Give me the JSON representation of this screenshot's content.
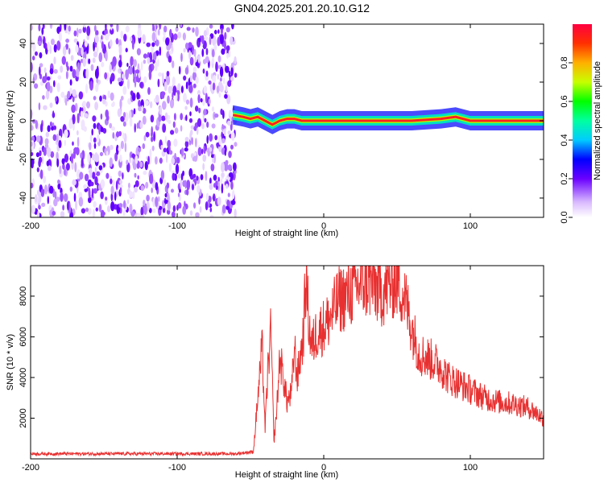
{
  "title": "GN04.2025.201.20.10.G12",
  "colors": {
    "series": "#e83030",
    "axis": "#000000"
  },
  "chart_data": [
    {
      "type": "heatmap",
      "xlabel": "Height of straight line (km)",
      "ylabel": "Frequency (Hz)",
      "xlim": [
        -200,
        150
      ],
      "ylim": [
        -50,
        50
      ],
      "xticks": [
        -200,
        -100,
        0,
        100
      ],
      "yticks": [
        -40,
        -20,
        0,
        20,
        40
      ],
      "noise_region_x": [
        -200,
        -60
      ],
      "ridge": {
        "x": [
          -62,
          -55,
          -50,
          -45,
          -40,
          -35,
          -30,
          -25,
          -20,
          -15,
          -10,
          0,
          20,
          40,
          60,
          80,
          90,
          100,
          120,
          150
        ],
        "y": [
          3,
          2,
          1,
          2,
          0,
          -2,
          0,
          1,
          1,
          0,
          0,
          0,
          0,
          0,
          0,
          1,
          2,
          0,
          0,
          0
        ]
      },
      "colorbar": {
        "label": "Normalized spectral amplitude",
        "ticks": [
          "0.0",
          "0.2",
          "0.4",
          "0.6",
          "0.8"
        ],
        "range": [
          0,
          1
        ]
      }
    },
    {
      "type": "line",
      "xlabel": "Height of straight line (km)",
      "ylabel": "SNR (10 * v/v)",
      "xlim": [
        -200,
        150
      ],
      "ylim": [
        0,
        9500
      ],
      "xticks": [
        -200,
        -100,
        0,
        100
      ],
      "yticks": [
        2000,
        4000,
        6000,
        8000
      ],
      "series": [
        {
          "x": [
            -200,
            -150,
            -100,
            -60,
            -48,
            -45,
            -42,
            -40,
            -38,
            -36,
            -34,
            -32,
            -30,
            -28,
            -25,
            -22,
            -20,
            -18,
            -16,
            -14,
            -12,
            -10,
            -8,
            -5,
            0,
            5,
            10,
            15,
            20,
            25,
            30,
            35,
            40,
            45,
            50,
            55,
            60,
            65,
            70,
            75,
            80,
            85,
            90,
            95,
            100,
            110,
            120,
            130,
            140,
            150
          ],
          "y": [
            250,
            250,
            250,
            250,
            350,
            3000,
            5500,
            1500,
            4500,
            6300,
            800,
            2500,
            5000,
            4200,
            2800,
            3200,
            5500,
            4000,
            5000,
            6000,
            9000,
            6500,
            5500,
            6200,
            6500,
            7000,
            7800,
            8000,
            8300,
            8600,
            8700,
            8500,
            8200,
            8600,
            8800,
            8000,
            6500,
            5200,
            5000,
            4800,
            4500,
            4000,
            3800,
            3600,
            3400,
            3000,
            2800,
            2700,
            2500,
            2000
          ]
        }
      ]
    }
  ]
}
